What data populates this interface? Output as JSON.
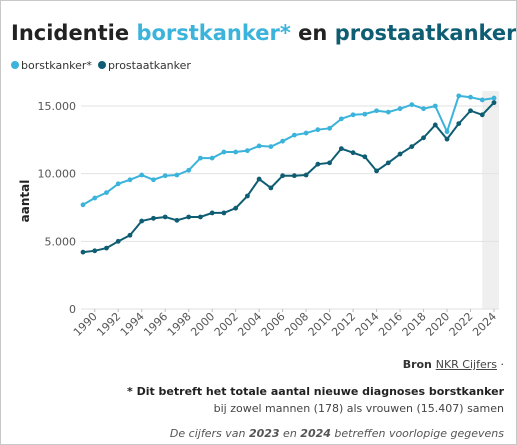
{
  "chart_data": {
    "type": "line",
    "title": [
      "Incidentie ",
      "borstkanker*",
      " en ",
      "prostaatkanker"
    ],
    "y_label": "aantal",
    "x": [
      1989,
      1990,
      1991,
      1992,
      1993,
      1994,
      1995,
      1996,
      1997,
      1998,
      1999,
      2000,
      2001,
      2002,
      2003,
      2004,
      2005,
      2006,
      2007,
      2008,
      2009,
      2010,
      2011,
      2012,
      2013,
      2014,
      2015,
      2016,
      2017,
      2018,
      2019,
      2020,
      2021,
      2022,
      2023,
      2024
    ],
    "xlim": [
      1989,
      2024
    ],
    "xticks": [
      1990,
      1992,
      1994,
      1996,
      1998,
      2000,
      2002,
      2004,
      2006,
      2008,
      2010,
      2012,
      2014,
      2016,
      2018,
      2020,
      2022,
      2024
    ],
    "ylim": [
      0,
      15000
    ],
    "yticks": [
      0,
      {
        "value": 5000,
        "label": "5.000"
      },
      {
        "value": 10000,
        "label": "10.000"
      },
      {
        "value": 15000,
        "label": "15.000"
      }
    ],
    "grid": true,
    "shaded_xrange": [
      2023,
      2024
    ],
    "series": [
      {
        "name": "borstkanker*",
        "color": "#3bb3da",
        "values": [
          7700,
          8200,
          8600,
          9250,
          9550,
          9900,
          9550,
          9850,
          9900,
          10250,
          11150,
          11150,
          11600,
          11600,
          11700,
          12050,
          12000,
          12400,
          12850,
          13000,
          13250,
          13350,
          14050,
          14350,
          14400,
          14650,
          14550,
          14800,
          15100,
          14800,
          15000,
          13100,
          15750,
          15650,
          15450,
          15585
        ]
      },
      {
        "name": "prostaatkanker",
        "color": "#0e5d73",
        "values": [
          4200,
          4300,
          4500,
          5000,
          5450,
          6500,
          6700,
          6800,
          6550,
          6800,
          6800,
          7100,
          7100,
          7450,
          8350,
          9600,
          8950,
          9850,
          9850,
          9900,
          10700,
          10800,
          11850,
          11550,
          11250,
          10200,
          10800,
          11450,
          12000,
          12650,
          13600,
          12550,
          13700,
          14650,
          14350,
          15250
        ]
      }
    ],
    "source": [
      "Bron ",
      "NKR Cijfers",
      " ·"
    ],
    "footnote": [
      "* Dit betreft het totale aantal nieuwe diagnoses borstkanker",
      "bij zowel mannen (178) als vrouwen (15.407) samen"
    ],
    "note": [
      "De cijfers van ",
      "2023",
      " en ",
      "2024",
      " betreffen voorlopige gegevens"
    ]
  }
}
